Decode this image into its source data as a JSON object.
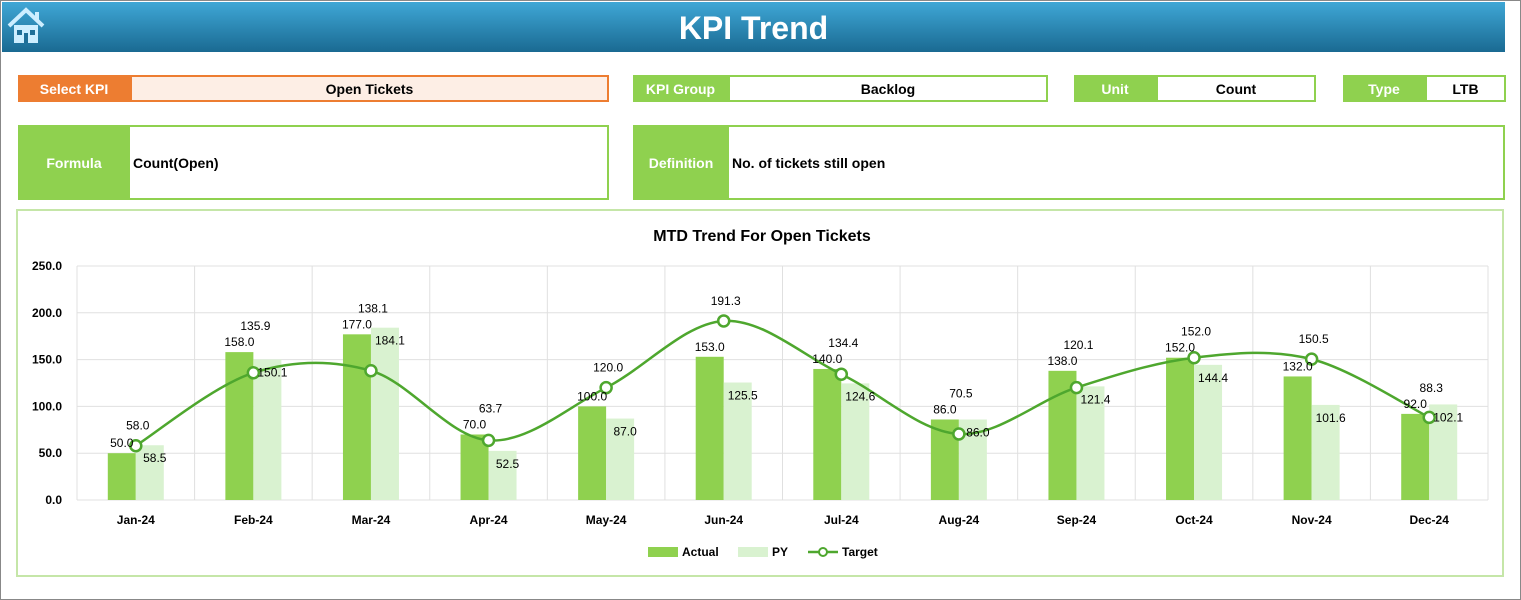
{
  "header": {
    "title": "KPI Trend",
    "home_icon": "home-icon"
  },
  "filters": {
    "select_kpi_label": "Select KPI",
    "select_kpi_value": "Open Tickets",
    "kpi_group_label": "KPI Group",
    "kpi_group_value": "Backlog",
    "unit_label": "Unit",
    "unit_value": "Count",
    "type_label": "Type",
    "type_value": "LTB"
  },
  "info": {
    "formula_label": "Formula",
    "formula_value": "Count(Open)",
    "definition_label": "Definition",
    "definition_value": "No. of tickets still open"
  },
  "colors": {
    "accent_orange": "#ed7d31",
    "green": "#8fd14f",
    "light_green": "#d9f2d0",
    "target": "#4ea72e"
  },
  "chart_data": {
    "type": "bar",
    "title": "MTD Trend For Open Tickets",
    "categories": [
      "Jan-24",
      "Feb-24",
      "Mar-24",
      "Apr-24",
      "May-24",
      "Jun-24",
      "Jul-24",
      "Aug-24",
      "Sep-24",
      "Oct-24",
      "Nov-24",
      "Dec-24"
    ],
    "series": [
      {
        "name": "Actual",
        "type": "bar",
        "values": [
          50.0,
          158.0,
          177.0,
          70.0,
          100.0,
          153.0,
          140.0,
          86.0,
          138.0,
          152.0,
          132.0,
          92.0
        ]
      },
      {
        "name": "PY",
        "type": "bar",
        "values": [
          58.5,
          150.1,
          184.1,
          52.5,
          87.0,
          125.5,
          124.6,
          86.0,
          121.4,
          144.4,
          101.6,
          102.1
        ]
      },
      {
        "name": "Target",
        "type": "line",
        "values": [
          58.0,
          135.9,
          138.1,
          63.7,
          120.0,
          191.3,
          134.4,
          70.5,
          120.1,
          152.0,
          150.5,
          88.3
        ]
      }
    ],
    "ylim": [
      0,
      250
    ],
    "yticks": [
      "0.0",
      "50.0",
      "100.0",
      "150.0",
      "200.0",
      "250.0"
    ],
    "grid": true,
    "legend": "bottom"
  }
}
